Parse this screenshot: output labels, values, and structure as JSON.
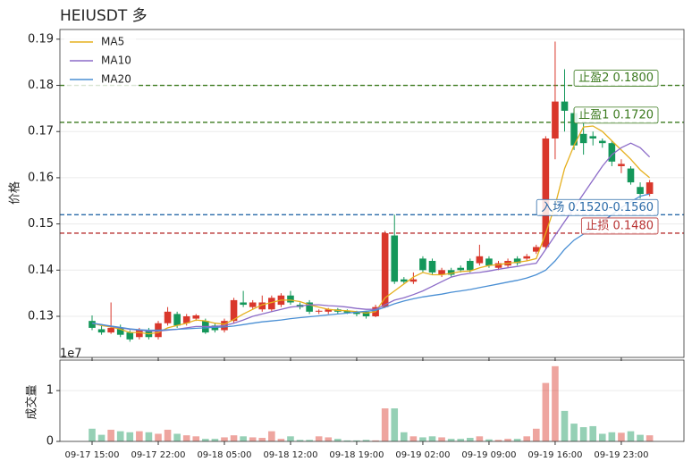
{
  "chart_data": {
    "type": "candlestick",
    "title": "HEIUSDT 多",
    "y_label": "价格",
    "categories": [
      "09-17 15:00",
      null,
      null,
      null,
      null,
      null,
      null,
      "09-17 22:00",
      null,
      null,
      null,
      null,
      null,
      null,
      "09-18 05:00",
      null,
      null,
      null,
      null,
      null,
      null,
      "09-18 12:00",
      null,
      null,
      null,
      null,
      null,
      null,
      "09-18 19:00",
      null,
      null,
      null,
      null,
      null,
      null,
      "09-19 02:00",
      null,
      null,
      null,
      null,
      null,
      null,
      "09-19 09:00",
      null,
      null,
      null,
      null,
      null,
      null,
      "09-19 16:00",
      null,
      null,
      null,
      null,
      null,
      null,
      "09-19 23:00",
      null,
      null,
      null
    ],
    "open": [
      0.129,
      0.1272,
      0.1265,
      0.1275,
      0.1265,
      0.1255,
      0.127,
      0.1255,
      0.1285,
      0.1305,
      0.1285,
      0.1295,
      0.129,
      0.128,
      0.127,
      0.129,
      0.133,
      0.132,
      0.1315,
      0.1315,
      0.1325,
      0.1345,
      0.1325,
      0.133,
      0.131,
      0.131,
      0.1315,
      0.1312,
      0.131,
      0.131,
      0.13,
      0.132,
      0.1475,
      0.138,
      0.1375,
      0.1425,
      0.142,
      0.139,
      0.14,
      0.1405,
      0.142,
      0.1415,
      0.1425,
      0.1405,
      0.141,
      0.1425,
      0.1425,
      0.144,
      0.145,
      0.1685,
      0.1765,
      0.174,
      0.1695,
      0.169,
      0.168,
      0.1675,
      0.1625,
      0.162,
      0.158,
      0.1565
    ],
    "high": [
      0.1302,
      0.128,
      0.133,
      0.1282,
      0.127,
      0.1275,
      0.1275,
      0.129,
      0.132,
      0.131,
      0.1305,
      0.1305,
      0.1295,
      0.1285,
      0.1295,
      0.134,
      0.1355,
      0.1335,
      0.1345,
      0.1345,
      0.135,
      0.1355,
      0.133,
      0.1335,
      0.1315,
      0.1318,
      0.1318,
      0.1315,
      0.1312,
      0.1312,
      0.1325,
      0.1485,
      0.152,
      0.1385,
      0.1395,
      0.143,
      0.1425,
      0.1405,
      0.1405,
      0.141,
      0.1425,
      0.1455,
      0.143,
      0.142,
      0.1425,
      0.143,
      0.1435,
      0.1455,
      0.169,
      0.1895,
      0.1835,
      0.175,
      0.172,
      0.17,
      0.1685,
      0.168,
      0.164,
      0.1625,
      0.159,
      0.1595
    ],
    "low": [
      0.127,
      0.126,
      0.1262,
      0.1255,
      0.1245,
      0.125,
      0.125,
      0.125,
      0.128,
      0.1275,
      0.128,
      0.129,
      0.1262,
      0.1265,
      0.1265,
      0.1285,
      0.132,
      0.1315,
      0.131,
      0.131,
      0.132,
      0.1325,
      0.1315,
      0.1305,
      0.1305,
      0.1305,
      0.1305,
      0.1305,
      0.13,
      0.1295,
      0.1298,
      0.1318,
      0.137,
      0.137,
      0.137,
      0.1395,
      0.139,
      0.1385,
      0.1385,
      0.1395,
      0.1395,
      0.141,
      0.1405,
      0.14,
      0.1405,
      0.141,
      0.142,
      0.1435,
      0.1445,
      0.164,
      0.17,
      0.166,
      0.165,
      0.167,
      0.1665,
      0.1625,
      0.161,
      0.1585,
      0.1555,
      0.156
    ],
    "close": [
      0.1275,
      0.1265,
      0.1275,
      0.126,
      0.125,
      0.127,
      0.1255,
      0.1285,
      0.131,
      0.128,
      0.13,
      0.1302,
      0.1265,
      0.127,
      0.129,
      0.1335,
      0.1325,
      0.133,
      0.133,
      0.134,
      0.1345,
      0.133,
      0.132,
      0.131,
      0.1312,
      0.1315,
      0.131,
      0.1308,
      0.1305,
      0.13,
      0.132,
      0.148,
      0.1375,
      0.1375,
      0.138,
      0.14,
      0.1395,
      0.14,
      0.139,
      0.14,
      0.14,
      0.143,
      0.141,
      0.1415,
      0.142,
      0.1415,
      0.143,
      0.145,
      0.1685,
      0.1765,
      0.1745,
      0.167,
      0.1675,
      0.1685,
      0.1675,
      0.1635,
      0.163,
      0.159,
      0.1565,
      0.159
    ],
    "up_color": "#d9372b",
    "down_color": "#14975a",
    "series": [
      {
        "name": "MA5",
        "color": "#e6b01e",
        "values": [
          0.1285,
          0.128,
          0.1277,
          0.1272,
          0.1265,
          0.1265,
          0.1262,
          0.1265,
          0.1275,
          0.128,
          0.1285,
          0.1292,
          0.129,
          0.1285,
          0.1283,
          0.1293,
          0.1305,
          0.1315,
          0.1325,
          0.133,
          0.1335,
          0.1335,
          0.1332,
          0.1325,
          0.132,
          0.1315,
          0.1313,
          0.1312,
          0.131,
          0.1307,
          0.131,
          0.134,
          0.1355,
          0.137,
          0.1385,
          0.1395,
          0.139,
          0.139,
          0.1393,
          0.1397,
          0.1398,
          0.1405,
          0.141,
          0.1412,
          0.1415,
          0.1417,
          0.142,
          0.1425,
          0.148,
          0.154,
          0.162,
          0.167,
          0.171,
          0.1712,
          0.17,
          0.168,
          0.166,
          0.164,
          0.1617,
          0.16
        ]
      },
      {
        "name": "MA10",
        "color": "#8c6bc8",
        "values": [
          0.1285,
          0.1282,
          0.1278,
          0.1275,
          0.1272,
          0.127,
          0.1268,
          0.1268,
          0.127,
          0.1272,
          0.1275,
          0.1278,
          0.1278,
          0.1278,
          0.128,
          0.1285,
          0.1292,
          0.13,
          0.1305,
          0.131,
          0.1315,
          0.132,
          0.1322,
          0.1325,
          0.1325,
          0.1323,
          0.1322,
          0.132,
          0.1317,
          0.1315,
          0.1315,
          0.1325,
          0.1335,
          0.134,
          0.1347,
          0.1355,
          0.1365,
          0.1375,
          0.1385,
          0.139,
          0.1393,
          0.1395,
          0.1398,
          0.1402,
          0.1405,
          0.1408,
          0.1412,
          0.1415,
          0.1445,
          0.1475,
          0.1505,
          0.1535,
          0.1565,
          0.1595,
          0.1625,
          0.165,
          0.1665,
          0.1675,
          0.1665,
          0.1645
        ]
      },
      {
        "name": "MA20",
        "color": "#4a8fd4",
        "values": [
          0.1285,
          0.1282,
          0.1279,
          0.1276,
          0.1273,
          0.1271,
          0.127,
          0.127,
          0.1271,
          0.1272,
          0.1273,
          0.1274,
          0.1275,
          0.1276,
          0.1277,
          0.1279,
          0.1282,
          0.1285,
          0.1288,
          0.129,
          0.1292,
          0.1295,
          0.1297,
          0.1299,
          0.1301,
          0.1303,
          0.1305,
          0.1307,
          0.1309,
          0.1311,
          0.1313,
          0.132,
          0.1327,
          0.1333,
          0.1338,
          0.1342,
          0.1345,
          0.1348,
          0.1352,
          0.1355,
          0.1358,
          0.1362,
          0.1366,
          0.137,
          0.1374,
          0.1378,
          0.1383,
          0.139,
          0.14,
          0.142,
          0.1445,
          0.1465,
          0.1478,
          0.149,
          0.1505,
          0.152,
          0.1535,
          0.1548,
          0.156,
          0.1565
        ]
      }
    ],
    "levels": [
      {
        "value": 0.18,
        "label": "止盈2 0.1800",
        "color": "#3b7a1e"
      },
      {
        "value": 0.172,
        "label": "止盈1 0.1720",
        "color": "#3b7a1e"
      },
      {
        "value": 0.152,
        "label": "入场 0.1520-0.1560",
        "color": "#2a6aa8"
      },
      {
        "value": 0.148,
        "label": "止损 0.1480",
        "color": "#b83232"
      }
    ],
    "ylim": [
      0.1211,
      0.1921
    ],
    "yticks": [
      0.13,
      0.14,
      0.15,
      0.16,
      0.17,
      0.18,
      0.19
    ],
    "grid": true,
    "legend": "upper left",
    "volume": {
      "y_label": "成交量",
      "offset_label": "1e7",
      "values": [
        2500000,
        1300000,
        2300000,
        2000000,
        1800000,
        2000000,
        1800000,
        1500000,
        2300000,
        1500000,
        1200000,
        1000000,
        500000,
        500000,
        800000,
        1200000,
        1000000,
        800000,
        700000,
        2000000,
        500000,
        1000000,
        300000,
        300000,
        1000000,
        800000,
        500000,
        200000,
        200000,
        300000,
        200000,
        6500000,
        6500000,
        1800000,
        1000000,
        800000,
        1000000,
        800000,
        500000,
        500000,
        700000,
        1000000,
        400000,
        300000,
        500000,
        500000,
        1000000,
        2500000,
        11500000,
        14800000,
        6000000,
        3500000,
        2800000,
        3000000,
        1500000,
        1800000,
        1700000,
        2000000,
        1300000,
        1200000
      ],
      "ylim": [
        0,
        16000000
      ],
      "yticks": [
        0,
        {
          "value": 10000000,
          "label": "1"
        }
      ]
    }
  }
}
